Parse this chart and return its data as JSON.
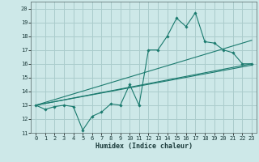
{
  "xlabel": "Humidex (Indice chaleur)",
  "background_color": "#cde8e8",
  "grid_color": "#aacccc",
  "line_color": "#1a7a6e",
  "xlim": [
    -0.5,
    23.5
  ],
  "ylim": [
    11,
    20.5
  ],
  "yticks": [
    11,
    12,
    13,
    14,
    15,
    16,
    17,
    18,
    19,
    20
  ],
  "xticks": [
    0,
    1,
    2,
    3,
    4,
    5,
    6,
    7,
    8,
    9,
    10,
    11,
    12,
    13,
    14,
    15,
    16,
    17,
    18,
    19,
    20,
    21,
    22,
    23
  ],
  "line1_x": [
    0,
    1,
    2,
    3,
    4,
    5,
    6,
    7,
    8,
    9,
    10,
    11,
    12,
    13,
    14,
    15,
    16,
    17,
    18,
    19,
    20,
    21,
    22,
    23
  ],
  "line1_y": [
    13.0,
    12.7,
    12.9,
    13.0,
    12.9,
    11.2,
    12.2,
    12.5,
    13.1,
    13.0,
    14.5,
    13.0,
    17.0,
    17.0,
    18.0,
    19.3,
    18.7,
    19.7,
    17.6,
    17.5,
    17.0,
    16.8,
    16.0,
    16.0
  ],
  "line2_x": [
    0,
    23
  ],
  "line2_y": [
    13.0,
    17.7
  ],
  "line3_x": [
    0,
    23
  ],
  "line3_y": [
    13.0,
    16.0
  ],
  "line4_x": [
    0,
    23
  ],
  "line4_y": [
    13.0,
    15.9
  ]
}
